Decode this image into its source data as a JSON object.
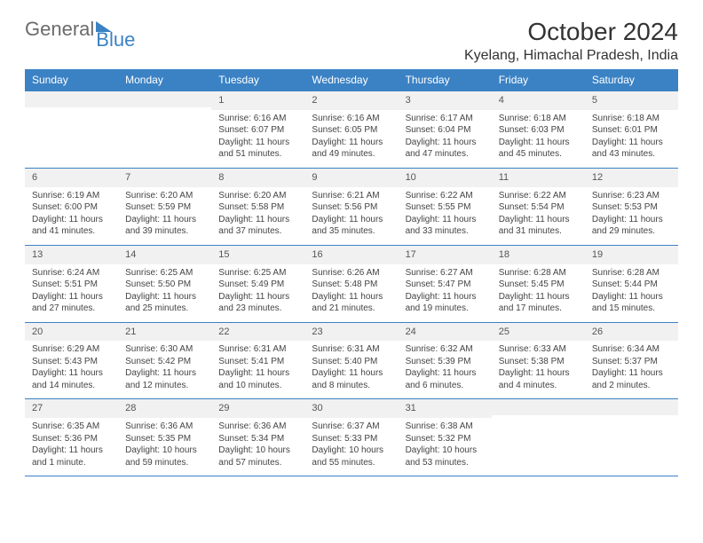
{
  "logo": {
    "text_a": "General",
    "text_b": "Blue"
  },
  "title": "October 2024",
  "location": "Kyelang, Himachal Pradesh, India",
  "colors": {
    "header_bg": "#3b82c4",
    "header_text": "#ffffff",
    "daynum_bg": "#f1f1f1",
    "border": "#3b82c4",
    "body_text": "#444444"
  },
  "day_labels": [
    "Sunday",
    "Monday",
    "Tuesday",
    "Wednesday",
    "Thursday",
    "Friday",
    "Saturday"
  ],
  "weeks": [
    [
      null,
      null,
      {
        "n": "1",
        "sr": "6:16 AM",
        "ss": "6:07 PM",
        "dl": "Daylight: 11 hours and 51 minutes."
      },
      {
        "n": "2",
        "sr": "6:16 AM",
        "ss": "6:05 PM",
        "dl": "Daylight: 11 hours and 49 minutes."
      },
      {
        "n": "3",
        "sr": "6:17 AM",
        "ss": "6:04 PM",
        "dl": "Daylight: 11 hours and 47 minutes."
      },
      {
        "n": "4",
        "sr": "6:18 AM",
        "ss": "6:03 PM",
        "dl": "Daylight: 11 hours and 45 minutes."
      },
      {
        "n": "5",
        "sr": "6:18 AM",
        "ss": "6:01 PM",
        "dl": "Daylight: 11 hours and 43 minutes."
      }
    ],
    [
      {
        "n": "6",
        "sr": "6:19 AM",
        "ss": "6:00 PM",
        "dl": "Daylight: 11 hours and 41 minutes."
      },
      {
        "n": "7",
        "sr": "6:20 AM",
        "ss": "5:59 PM",
        "dl": "Daylight: 11 hours and 39 minutes."
      },
      {
        "n": "8",
        "sr": "6:20 AM",
        "ss": "5:58 PM",
        "dl": "Daylight: 11 hours and 37 minutes."
      },
      {
        "n": "9",
        "sr": "6:21 AM",
        "ss": "5:56 PM",
        "dl": "Daylight: 11 hours and 35 minutes."
      },
      {
        "n": "10",
        "sr": "6:22 AM",
        "ss": "5:55 PM",
        "dl": "Daylight: 11 hours and 33 minutes."
      },
      {
        "n": "11",
        "sr": "6:22 AM",
        "ss": "5:54 PM",
        "dl": "Daylight: 11 hours and 31 minutes."
      },
      {
        "n": "12",
        "sr": "6:23 AM",
        "ss": "5:53 PM",
        "dl": "Daylight: 11 hours and 29 minutes."
      }
    ],
    [
      {
        "n": "13",
        "sr": "6:24 AM",
        "ss": "5:51 PM",
        "dl": "Daylight: 11 hours and 27 minutes."
      },
      {
        "n": "14",
        "sr": "6:25 AM",
        "ss": "5:50 PM",
        "dl": "Daylight: 11 hours and 25 minutes."
      },
      {
        "n": "15",
        "sr": "6:25 AM",
        "ss": "5:49 PM",
        "dl": "Daylight: 11 hours and 23 minutes."
      },
      {
        "n": "16",
        "sr": "6:26 AM",
        "ss": "5:48 PM",
        "dl": "Daylight: 11 hours and 21 minutes."
      },
      {
        "n": "17",
        "sr": "6:27 AM",
        "ss": "5:47 PM",
        "dl": "Daylight: 11 hours and 19 minutes."
      },
      {
        "n": "18",
        "sr": "6:28 AM",
        "ss": "5:45 PM",
        "dl": "Daylight: 11 hours and 17 minutes."
      },
      {
        "n": "19",
        "sr": "6:28 AM",
        "ss": "5:44 PM",
        "dl": "Daylight: 11 hours and 15 minutes."
      }
    ],
    [
      {
        "n": "20",
        "sr": "6:29 AM",
        "ss": "5:43 PM",
        "dl": "Daylight: 11 hours and 14 minutes."
      },
      {
        "n": "21",
        "sr": "6:30 AM",
        "ss": "5:42 PM",
        "dl": "Daylight: 11 hours and 12 minutes."
      },
      {
        "n": "22",
        "sr": "6:31 AM",
        "ss": "5:41 PM",
        "dl": "Daylight: 11 hours and 10 minutes."
      },
      {
        "n": "23",
        "sr": "6:31 AM",
        "ss": "5:40 PM",
        "dl": "Daylight: 11 hours and 8 minutes."
      },
      {
        "n": "24",
        "sr": "6:32 AM",
        "ss": "5:39 PM",
        "dl": "Daylight: 11 hours and 6 minutes."
      },
      {
        "n": "25",
        "sr": "6:33 AM",
        "ss": "5:38 PM",
        "dl": "Daylight: 11 hours and 4 minutes."
      },
      {
        "n": "26",
        "sr": "6:34 AM",
        "ss": "5:37 PM",
        "dl": "Daylight: 11 hours and 2 minutes."
      }
    ],
    [
      {
        "n": "27",
        "sr": "6:35 AM",
        "ss": "5:36 PM",
        "dl": "Daylight: 11 hours and 1 minute."
      },
      {
        "n": "28",
        "sr": "6:36 AM",
        "ss": "5:35 PM",
        "dl": "Daylight: 10 hours and 59 minutes."
      },
      {
        "n": "29",
        "sr": "6:36 AM",
        "ss": "5:34 PM",
        "dl": "Daylight: 10 hours and 57 minutes."
      },
      {
        "n": "30",
        "sr": "6:37 AM",
        "ss": "5:33 PM",
        "dl": "Daylight: 10 hours and 55 minutes."
      },
      {
        "n": "31",
        "sr": "6:38 AM",
        "ss": "5:32 PM",
        "dl": "Daylight: 10 hours and 53 minutes."
      },
      null,
      null
    ]
  ],
  "labels": {
    "sunrise_prefix": "Sunrise: ",
    "sunset_prefix": "Sunset: "
  }
}
